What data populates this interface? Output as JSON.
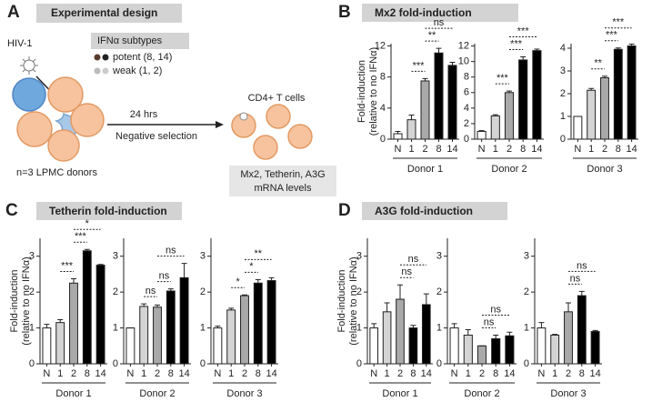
{
  "panel_a": {
    "letter": "A",
    "title": "Experimental design",
    "virus": "HIV-1",
    "subtypes_title": "IFNα subtypes",
    "potent": "potent (8, 14)",
    "weak": "weak (1, 2)",
    "time": "24 hrs",
    "step": "Negative selection",
    "target": "CD4+ T cells",
    "donors": "n=3 LPMC donors",
    "readout": [
      "Mx2, Tetherin, A3G",
      "mRNA levels"
    ]
  },
  "chart_data": [
    {
      "type": "bar",
      "letter": "B",
      "title": "Mx2 fold-induction",
      "ylabel": [
        "Fold-induction",
        "(relative to no IFNα)"
      ],
      "subplots": [
        {
          "xlabel": "Donor 1",
          "categories": [
            "N",
            "1",
            "2",
            "8",
            "14"
          ],
          "values": [
            0.7,
            2.5,
            7.5,
            11.1,
            9.5
          ],
          "errors": [
            0.3,
            0.6,
            0.3,
            0.6,
            0.4
          ],
          "colors": [
            "#ffffff",
            "#d4d4d4",
            "#a9a9a9",
            "#000000",
            "#000000"
          ],
          "ylim": [
            0,
            12.3
          ],
          "yticks": [
            0,
            4,
            8,
            12
          ],
          "annotations": [
            {
              "text": "***",
              "between": [
                "1",
                "2"
              ]
            },
            {
              "text": "**",
              "between": [
                "2",
                "8"
              ]
            },
            {
              "text": "ns",
              "between": [
                "2",
                "14"
              ]
            }
          ]
        },
        {
          "xlabel": "Donor 2",
          "categories": [
            "N",
            "1",
            "2",
            "8",
            "14"
          ],
          "values": [
            1.0,
            3.0,
            6.0,
            10.2,
            11.4
          ],
          "errors": [
            0.1,
            0.15,
            0.2,
            0.4,
            0.2
          ],
          "colors": [
            "#ffffff",
            "#d4d4d4",
            "#a9a9a9",
            "#000000",
            "#000000"
          ],
          "ylim": [
            0,
            12.3
          ],
          "yticks": [
            0,
            2,
            4,
            6,
            8,
            10,
            12
          ],
          "annotations": [
            {
              "text": "***",
              "between": [
                "1",
                "2"
              ]
            },
            {
              "text": "***",
              "between": [
                "2",
                "8"
              ]
            },
            {
              "text": "***",
              "between": [
                "2",
                "14"
              ]
            }
          ]
        },
        {
          "xlabel": "Donor 3",
          "categories": [
            "N",
            "1",
            "2",
            "8",
            "14"
          ],
          "values": [
            1.0,
            2.15,
            2.7,
            3.95,
            4.1
          ],
          "errors": [
            0,
            0.08,
            0.07,
            0.06,
            0.08
          ],
          "colors": [
            "#ffffff",
            "#d4d4d4",
            "#a9a9a9",
            "#000000",
            "#000000"
          ],
          "ylim": [
            0,
            4.2
          ],
          "yticks": [
            0,
            1,
            2,
            3,
            4
          ],
          "annotations": [
            {
              "text": "**",
              "between": [
                "1",
                "2"
              ]
            },
            {
              "text": "***",
              "between": [
                "2",
                "8"
              ]
            },
            {
              "text": "***",
              "between": [
                "2",
                "14"
              ]
            }
          ]
        }
      ]
    },
    {
      "type": "bar",
      "letter": "C",
      "title": "Tetherin fold-induction",
      "ylabel": [
        "Fold-induction",
        "(relative to no IFNα)"
      ],
      "subplots": [
        {
          "xlabel": "Donor 1",
          "categories": [
            "N",
            "1",
            "2",
            "8",
            "14"
          ],
          "values": [
            1.0,
            1.15,
            2.25,
            3.15,
            2.75
          ],
          "errors": [
            0.1,
            0.08,
            0.12,
            0.04,
            0.02
          ],
          "colors": [
            "#ffffff",
            "#d4d4d4",
            "#a9a9a9",
            "#000000",
            "#000000"
          ],
          "ylim": [
            0,
            3.5
          ],
          "yticks": [
            0,
            1,
            2,
            3
          ],
          "annotations": [
            {
              "text": "***",
              "between": [
                "1",
                "2"
              ]
            },
            {
              "text": "***",
              "between": [
                "2",
                "8"
              ]
            },
            {
              "text": "*",
              "between": [
                "2",
                "14"
              ]
            }
          ]
        },
        {
          "xlabel": "Donor 2",
          "categories": [
            "N",
            "1",
            "2",
            "8",
            "14"
          ],
          "values": [
            1.0,
            1.6,
            1.58,
            2.03,
            2.4
          ],
          "errors": [
            0,
            0.07,
            0.06,
            0.06,
            0.4
          ],
          "colors": [
            "#ffffff",
            "#d4d4d4",
            "#a9a9a9",
            "#000000",
            "#000000"
          ],
          "ylim": [
            0,
            3.5
          ],
          "yticks": [
            0,
            1,
            2,
            3
          ],
          "annotations": [
            {
              "text": "ns",
              "between": [
                "1",
                "2"
              ]
            },
            {
              "text": "ns",
              "between": [
                "2",
                "8"
              ]
            },
            {
              "text": "ns",
              "between": [
                "2",
                "14"
              ]
            }
          ]
        },
        {
          "xlabel": "Donor 3",
          "categories": [
            "N",
            "1",
            "2",
            "8",
            "14"
          ],
          "values": [
            1.0,
            1.5,
            1.9,
            2.25,
            2.32
          ],
          "errors": [
            0.05,
            0.05,
            0.02,
            0.1,
            0.08
          ],
          "colors": [
            "#ffffff",
            "#d4d4d4",
            "#a9a9a9",
            "#000000",
            "#000000"
          ],
          "ylim": [
            0,
            3.5
          ],
          "yticks": [
            0,
            1,
            2,
            3
          ],
          "annotations": [
            {
              "text": "*",
              "between": [
                "1",
                "2"
              ]
            },
            {
              "text": "*",
              "between": [
                "2",
                "8"
              ]
            },
            {
              "text": "**",
              "between": [
                "2",
                "14"
              ]
            }
          ]
        }
      ]
    },
    {
      "type": "bar",
      "letter": "D",
      "title": "A3G fold-induction",
      "ylabel": [
        "Fold-induction",
        "(relative to no IFNα)"
      ],
      "subplots": [
        {
          "xlabel": "Donor 1",
          "categories": [
            "N",
            "1",
            "2",
            "8",
            "14"
          ],
          "values": [
            1.0,
            1.45,
            1.8,
            1.0,
            1.65
          ],
          "errors": [
            0.12,
            0.25,
            0.4,
            0.07,
            0.3
          ],
          "colors": [
            "#ffffff",
            "#d4d4d4",
            "#a9a9a9",
            "#000000",
            "#000000"
          ],
          "ylim": [
            0,
            3.5
          ],
          "yticks": [
            0,
            1,
            2,
            3
          ],
          "annotations": [
            {
              "text": "ns",
              "between": [
                "2",
                "8"
              ]
            },
            {
              "text": "ns",
              "between": [
                "2",
                "14"
              ]
            }
          ]
        },
        {
          "xlabel": "Donor 2",
          "categories": [
            "N",
            "1",
            "2",
            "8",
            "14"
          ],
          "values": [
            1.0,
            0.8,
            0.5,
            0.7,
            0.78
          ],
          "errors": [
            0.12,
            0.15,
            0,
            0.1,
            0.1
          ],
          "colors": [
            "#ffffff",
            "#d4d4d4",
            "#a9a9a9",
            "#000000",
            "#000000"
          ],
          "ylim": [
            0,
            3.5
          ],
          "yticks": [
            0,
            1,
            2,
            3
          ],
          "annotations": [
            {
              "text": "ns",
              "between": [
                "2",
                "8"
              ]
            },
            {
              "text": "ns",
              "between": [
                "2",
                "14"
              ]
            }
          ]
        },
        {
          "xlabel": "Donor 3",
          "categories": [
            "N",
            "1",
            "2",
            "8",
            "14"
          ],
          "values": [
            1.0,
            0.8,
            1.45,
            1.9,
            0.9
          ],
          "errors": [
            0.15,
            0.02,
            0.25,
            0.12,
            0.03
          ],
          "colors": [
            "#ffffff",
            "#d4d4d4",
            "#a9a9a9",
            "#000000",
            "#000000"
          ],
          "ylim": [
            0,
            3.5
          ],
          "yticks": [
            0,
            1,
            2,
            3
          ],
          "annotations": [
            {
              "text": "ns",
              "between": [
                "2",
                "8"
              ]
            },
            {
              "text": "ns",
              "between": [
                "2",
                "14"
              ]
            }
          ]
        }
      ]
    }
  ]
}
